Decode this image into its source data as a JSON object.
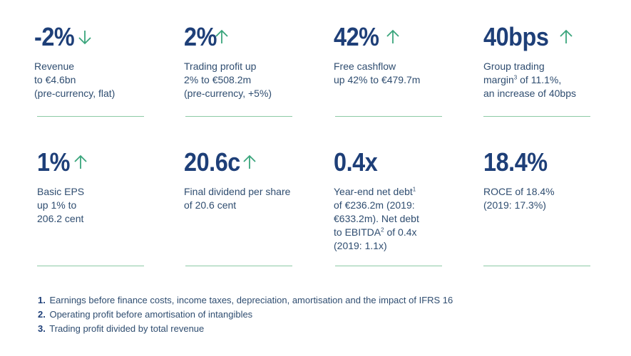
{
  "kpis": [
    {
      "value": "-2%",
      "arrow": "down-arrow-icon",
      "desc": "Revenue\nto €4.6bn\n(pre-currency, flat)"
    },
    {
      "value": "2%",
      "arrow": "up-arrow-icon",
      "desc": "Trading profit up\n2% to €508.2m\n(pre-currency, +5%)"
    },
    {
      "value": "42%",
      "arrow": "up-arrow-icon",
      "desc": "Free cashflow\nup 42% to €479.7m"
    },
    {
      "value": "40bps",
      "arrow": "up-arrow-icon",
      "desc_a": "Group trading\nmargin",
      "desc_sup": "3",
      "desc_b": " of 11.1%,\nan increase of 40bps"
    },
    {
      "value": "1%",
      "arrow": "up-arrow-icon",
      "desc": "Basic EPS\nup 1% to\n206.2 cent"
    },
    {
      "value": "20.6c",
      "arrow": "up-arrow-icon",
      "desc": "Final dividend per share\nof 20.6 cent"
    },
    {
      "value": "0.4x",
      "desc_a": "Year-end net debt",
      "desc_sup": "1",
      "desc_b": "\nof €236.2m (2019:\n€633.2m). Net debt\nto EBITDA",
      "desc_sup2": "2",
      "desc_c": " of 0.4x\n(2019: 1.1x)"
    },
    {
      "value": "18.4%",
      "desc": "ROCE of 18.4%\n(2019: 17.3%)"
    }
  ],
  "footnotes": [
    {
      "num": "1.",
      "text": "Earnings before finance costs, income taxes, depreciation, amortisation and the impact of IFRS 16"
    },
    {
      "num": "2.",
      "text": "Operating profit before amortisation of intangibles"
    },
    {
      "num": "3.",
      "text": "Trading profit divided by total revenue"
    }
  ],
  "colors": {
    "navy": "#1e3f78",
    "arrow": "#3aa57c",
    "rule": "#8ccaa5"
  }
}
